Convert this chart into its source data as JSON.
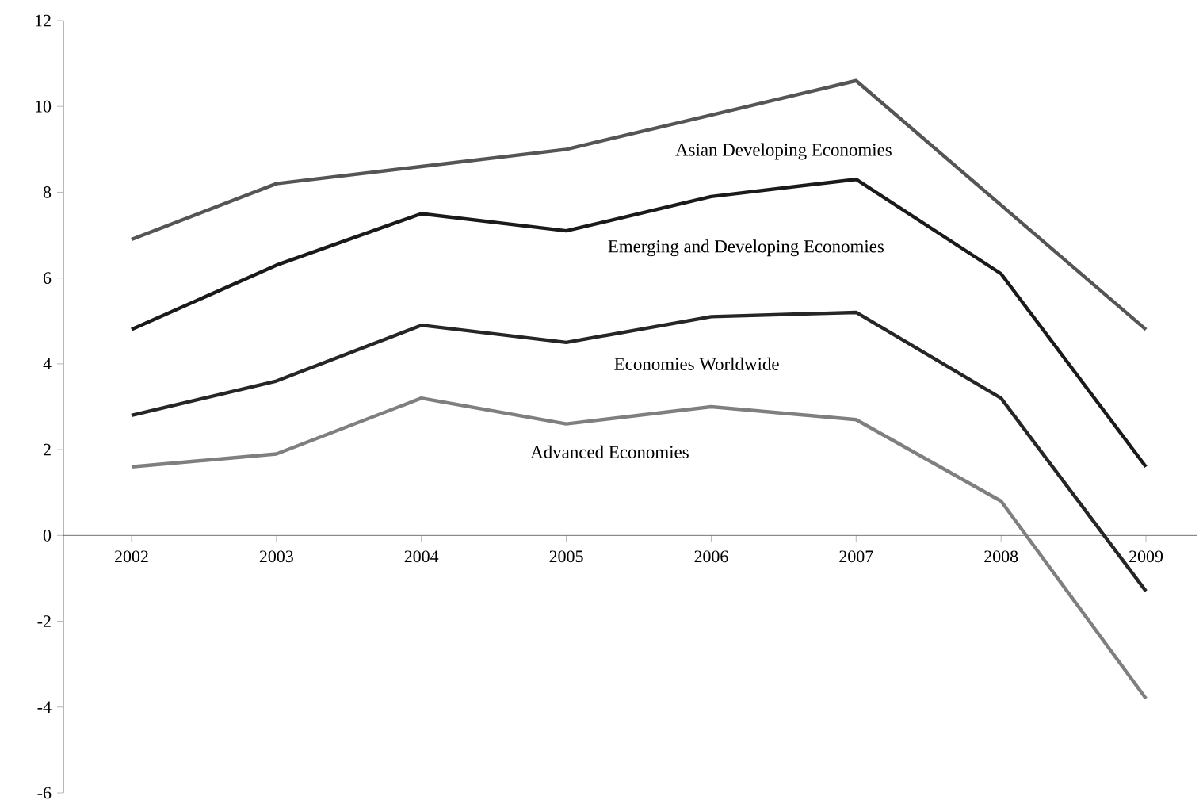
{
  "chart_data": {
    "type": "line",
    "categories": [
      "2002",
      "2003",
      "2004",
      "2005",
      "2006",
      "2007",
      "2008",
      "2009"
    ],
    "series": [
      {
        "name": "Asian Developing Economies",
        "color": "#555555",
        "values": [
          6.9,
          8.2,
          8.6,
          9.0,
          9.8,
          10.6,
          7.7,
          4.8
        ]
      },
      {
        "name": "Emerging and Developing Economies",
        "color": "#1a1a1a",
        "values": [
          4.8,
          6.3,
          7.5,
          7.1,
          7.9,
          8.3,
          6.1,
          1.6
        ]
      },
      {
        "name": "Economies Worldwide",
        "color": "#262626",
        "values": [
          2.8,
          3.6,
          4.9,
          4.5,
          5.1,
          5.2,
          3.2,
          -1.3
        ]
      },
      {
        "name": "Advanced Economies",
        "color": "#7f7f7f",
        "values": [
          1.6,
          1.9,
          3.2,
          2.6,
          3.0,
          2.7,
          0.8,
          -3.8
        ]
      }
    ],
    "ylim": [
      -6,
      12
    ],
    "yticks": [
      -6,
      -4,
      -2,
      0,
      2,
      4,
      6,
      8,
      10,
      12
    ],
    "grid": false,
    "marker": "none",
    "line_style": "solid"
  }
}
